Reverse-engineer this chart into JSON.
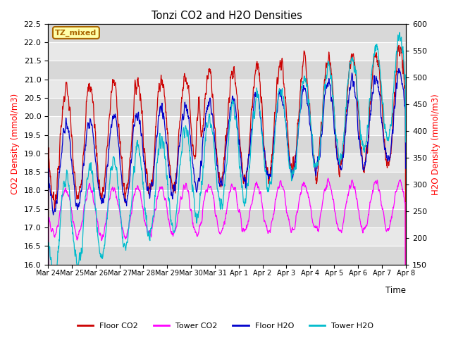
{
  "title": "Tonzi CO2 and H2O Densities",
  "xlabel": "Time",
  "ylabel_left": "CO2 Density (mmol/m3)",
  "ylabel_right": "H2O Density (mmol/m3)",
  "ylim_left": [
    16.0,
    22.5
  ],
  "ylim_right": [
    150,
    600
  ],
  "xtick_labels": [
    "Mar 24",
    "Mar 25",
    "Mar 26",
    "Mar 27",
    "Mar 28",
    "Mar 29",
    "Mar 30",
    "Mar 31",
    "Apr 1",
    "Apr 2",
    "Apr 3",
    "Apr 4",
    "Apr 5",
    "Apr 6",
    "Apr 7",
    "Apr 8"
  ],
  "annotation_text": "TZ_mixed",
  "annotation_color": "#aa6600",
  "annotation_bg": "#ffffaa",
  "colors": {
    "floor_co2": "#cc0000",
    "tower_co2": "#ff00ff",
    "floor_h2o": "#0000cc",
    "tower_h2o": "#00bbcc"
  },
  "legend_labels": [
    "Floor CO2",
    "Tower CO2",
    "Floor H2O",
    "Tower H2O"
  ],
  "bg_color": "#e0e0e0",
  "n_days": 15,
  "points_per_day": 96,
  "seed": 7
}
